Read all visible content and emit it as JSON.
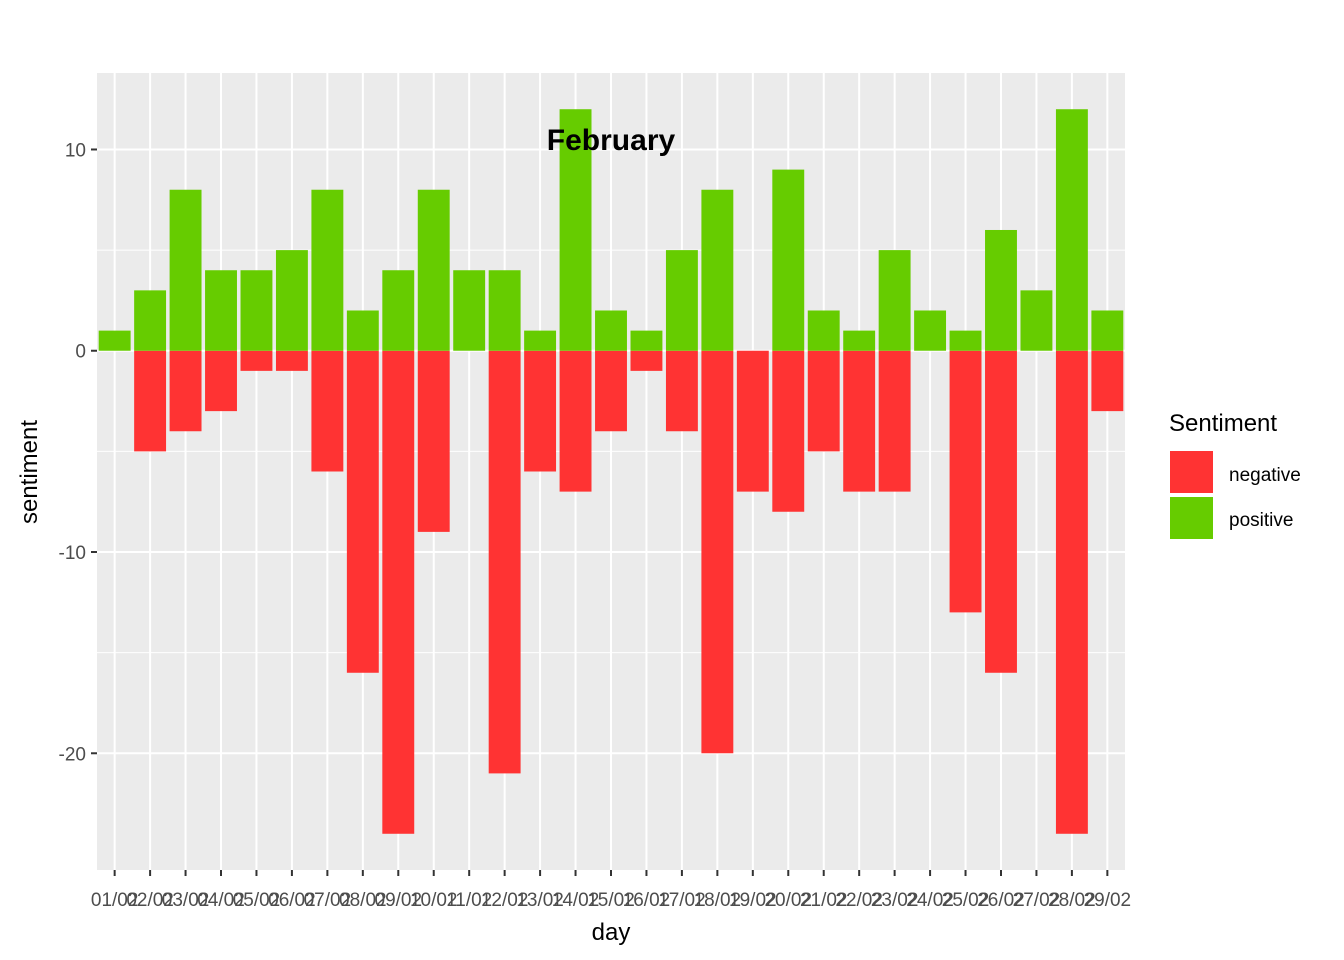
{
  "chart_data": {
    "type": "bar",
    "title": "February",
    "xlabel": "day",
    "ylabel": "sentiment",
    "categories": [
      "01/02",
      "02/02",
      "03/02",
      "04/02",
      "05/02",
      "06/02",
      "07/02",
      "08/02",
      "09/02",
      "10/02",
      "11/02",
      "12/02",
      "13/02",
      "14/02",
      "15/02",
      "16/02",
      "17/02",
      "18/02",
      "19/02",
      "20/02",
      "21/02",
      "22/02",
      "23/02",
      "24/02",
      "25/02",
      "26/02",
      "27/02",
      "28/02",
      "29/02"
    ],
    "series": [
      {
        "name": "negative",
        "color": "#ff3333",
        "values": [
          0,
          -5,
          -4,
          -3,
          -1,
          -1,
          -6,
          -16,
          -24,
          -9,
          0,
          -21,
          -6,
          -7,
          -4,
          -1,
          -4,
          -20,
          -7,
          -8,
          -5,
          -7,
          -7,
          0,
          -13,
          -16,
          0,
          -24,
          -3
        ]
      },
      {
        "name": "positive",
        "color": "#66cc00",
        "values": [
          1,
          3,
          8,
          4,
          4,
          5,
          8,
          2,
          4,
          8,
          4,
          4,
          1,
          12,
          2,
          1,
          5,
          8,
          0,
          9,
          2,
          1,
          5,
          2,
          1,
          6,
          3,
          12,
          2
        ]
      }
    ],
    "ylim": [
      -25.8,
      13.8
    ],
    "yticks": [
      10,
      0,
      -10,
      -20
    ],
    "legend": {
      "title": "Sentiment",
      "position": "right"
    },
    "grid": true,
    "panel_background": "#ebebeb",
    "grid_color": "#ffffff"
  }
}
